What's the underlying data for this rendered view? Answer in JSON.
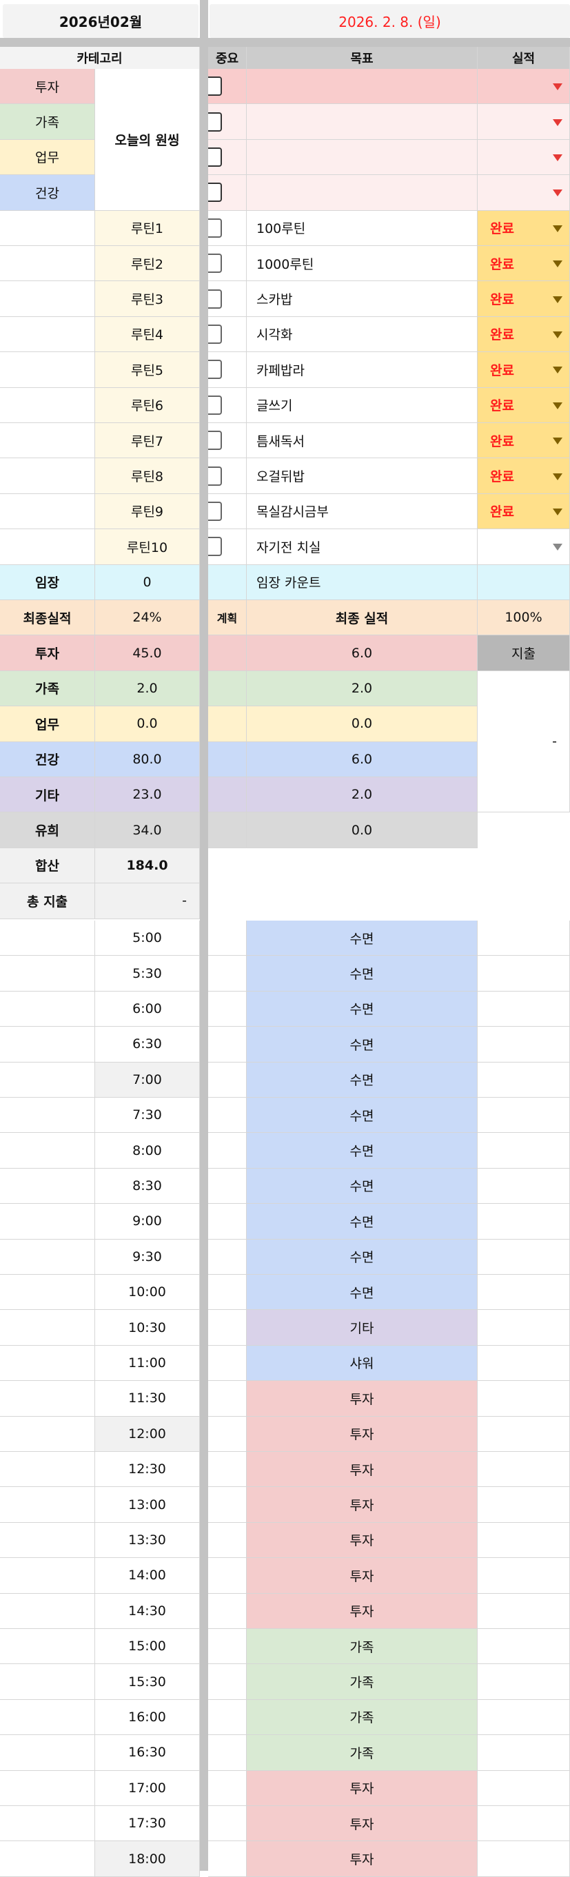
{
  "header": {
    "month_title": "2026년02월",
    "date_title": "2026. 2. 8. (일)",
    "date_color": "#ff2020",
    "columns": {
      "category": "카테고리",
      "importance": "중요",
      "goal": "목표",
      "result": "실적"
    }
  },
  "colors": {
    "투자": "#f4cccc",
    "가족": "#d9ead3",
    "업무": "#fff2cc",
    "건강": "#c9daf8",
    "기타": "#d9d2e9",
    "유희": "#d9d9d9",
    "수면": "#c9daf8",
    "샤워": "#c9daf8",
    "임장": "#dbf6fc",
    "최종실적": "#fce5cd",
    "routine": "#fef8e4",
    "wish_first": "#f9cccc",
    "wish_other": "#fdeeee",
    "done": "#ffe08a",
    "gray_light": "#f1f1f1",
    "expense": "#b7b7b7"
  },
  "one_thing": {
    "label": "오늘의 원씽",
    "items": [
      {
        "category": "투자",
        "goal": "",
        "checked": false
      },
      {
        "category": "가족",
        "goal": "",
        "checked": false
      },
      {
        "category": "업무",
        "goal": "",
        "checked": false
      },
      {
        "category": "건강",
        "goal": "",
        "checked": false
      }
    ]
  },
  "routines": [
    {
      "label": "루틴1",
      "goal": "100루틴",
      "result": "완료",
      "checked": false
    },
    {
      "label": "루틴2",
      "goal": "1000루틴",
      "result": "완료",
      "checked": false
    },
    {
      "label": "루틴3",
      "goal": "스카밥",
      "result": "완료",
      "checked": false
    },
    {
      "label": "루틴4",
      "goal": "시각화",
      "result": "완료",
      "checked": false
    },
    {
      "label": "루틴5",
      "goal": "카페밥라",
      "result": "완료",
      "checked": false
    },
    {
      "label": "루틴6",
      "goal": "글쓰기",
      "result": "완료",
      "checked": false
    },
    {
      "label": "루틴7",
      "goal": "틈새독서",
      "result": "완료",
      "checked": false
    },
    {
      "label": "루틴8",
      "goal": "오걸뒤밥",
      "result": "완료",
      "checked": false
    },
    {
      "label": "루틴9",
      "goal": "목실감시금부",
      "result": "완료",
      "checked": false
    },
    {
      "label": "루틴10",
      "goal": "자기전 치실",
      "result": "",
      "checked": false
    }
  ],
  "imjang": {
    "label": "임장",
    "value": "0",
    "goal": "임장 카운트"
  },
  "summary": {
    "header": {
      "label": "최종실적",
      "value": "24%",
      "plan_label": "계획",
      "final_label": "최종 실적",
      "result": "100%"
    },
    "rows": [
      {
        "category": "투자",
        "plan": "45.0",
        "final": "6.0"
      },
      {
        "category": "가족",
        "plan": "2.0",
        "final": "2.0"
      },
      {
        "category": "업무",
        "plan": "0.0",
        "final": "0.0"
      },
      {
        "category": "건강",
        "plan": "80.0",
        "final": "6.0"
      },
      {
        "category": "기타",
        "plan": "23.0",
        "final": "2.0"
      },
      {
        "category": "유희",
        "plan": "34.0",
        "final": "0.0"
      }
    ],
    "expense_label": "지출",
    "expense_value": "-",
    "total_label": "합산",
    "total_value": "184.0",
    "total_expense_label": "총 지출",
    "total_expense_value": "-"
  },
  "schedule": [
    {
      "time": "5:00",
      "activity": "수면"
    },
    {
      "time": "5:30",
      "activity": "수면"
    },
    {
      "time": "6:00",
      "activity": "수면"
    },
    {
      "time": "6:30",
      "activity": "수면"
    },
    {
      "time": "7:00",
      "activity": "수면",
      "shaded": true
    },
    {
      "time": "7:30",
      "activity": "수면"
    },
    {
      "time": "8:00",
      "activity": "수면"
    },
    {
      "time": "8:30",
      "activity": "수면"
    },
    {
      "time": "9:00",
      "activity": "수면"
    },
    {
      "time": "9:30",
      "activity": "수면"
    },
    {
      "time": "10:00",
      "activity": "수면"
    },
    {
      "time": "10:30",
      "activity": "기타"
    },
    {
      "time": "11:00",
      "activity": "샤워"
    },
    {
      "time": "11:30",
      "activity": "투자"
    },
    {
      "time": "12:00",
      "activity": "투자",
      "shaded": true
    },
    {
      "time": "12:30",
      "activity": "투자"
    },
    {
      "time": "13:00",
      "activity": "투자"
    },
    {
      "time": "13:30",
      "activity": "투자"
    },
    {
      "time": "14:00",
      "activity": "투자"
    },
    {
      "time": "14:30",
      "activity": "투자"
    },
    {
      "time": "15:00",
      "activity": "가족"
    },
    {
      "time": "15:30",
      "activity": "가족"
    },
    {
      "time": "16:00",
      "activity": "가족"
    },
    {
      "time": "16:30",
      "activity": "가족"
    },
    {
      "time": "17:00",
      "activity": "투자"
    },
    {
      "time": "17:30",
      "activity": "투자"
    },
    {
      "time": "18:00",
      "activity": "투자",
      "shaded": true
    }
  ]
}
